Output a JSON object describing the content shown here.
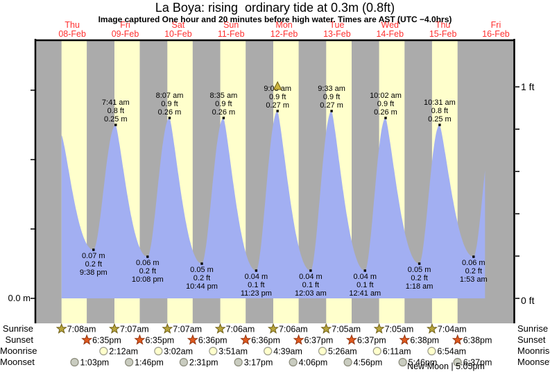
{
  "chart_data": {
    "type": "area",
    "title": "La Boya: rising  ordinary tide at 0.3m (0.8ft)",
    "subtitle": "Image captured One hour and 20 minutes before high water. Times are AST (UTC −4.0hrs)",
    "days": [
      {
        "weekday": "Thu",
        "date": "08-Feb"
      },
      {
        "weekday": "Fri",
        "date": "09-Feb"
      },
      {
        "weekday": "Sat",
        "date": "10-Feb"
      },
      {
        "weekday": "Sun",
        "date": "11-Feb"
      },
      {
        "weekday": "Mon",
        "date": "12-Feb"
      },
      {
        "weekday": "Tue",
        "date": "13-Feb"
      },
      {
        "weekday": "Wed",
        "date": "14-Feb"
      },
      {
        "weekday": "Thu",
        "date": "15-Feb"
      },
      {
        "weekday": "Fri",
        "date": "16-Feb"
      }
    ],
    "y_axis_left": {
      "label": "0.0 m",
      "tick_step_m": 0.1,
      "max_m": 0.3
    },
    "y_axis_right": {
      "label_bottom": "0 ft",
      "label_top": "1 ft",
      "tick_step_ft": 0.2,
      "max_ft": 1.0
    },
    "tide_events": [
      {
        "day": 0,
        "kind": "low",
        "time": "9:38 pm",
        "ft": 0.2,
        "m": 0.07
      },
      {
        "day": 1,
        "kind": "high",
        "time": "7:41 am",
        "ft": 0.8,
        "m": 0.25
      },
      {
        "day": 1,
        "kind": "low",
        "time": "10:08 pm",
        "ft": 0.2,
        "m": 0.06
      },
      {
        "day": 2,
        "kind": "high",
        "time": "8:07 am",
        "ft": 0.9,
        "m": 0.26
      },
      {
        "day": 2,
        "kind": "low",
        "time": "10:44 pm",
        "ft": 0.2,
        "m": 0.05
      },
      {
        "day": 3,
        "kind": "high",
        "time": "8:35 am",
        "ft": 0.9,
        "m": 0.26
      },
      {
        "day": 3,
        "kind": "low",
        "time": "11:23 pm",
        "ft": 0.1,
        "m": 0.04
      },
      {
        "day": 4,
        "kind": "high",
        "time": "9:03 am",
        "ft": 0.9,
        "m": 0.27,
        "marker": true
      },
      {
        "day": 5,
        "kind": "low",
        "time": "12:03 am",
        "ft": 0.1,
        "m": 0.04
      },
      {
        "day": 5,
        "kind": "high",
        "time": "9:33 am",
        "ft": 0.9,
        "m": 0.27
      },
      {
        "day": 6,
        "kind": "low",
        "time": "12:41 am",
        "ft": 0.1,
        "m": 0.04
      },
      {
        "day": 6,
        "kind": "high",
        "time": "10:02 am",
        "ft": 0.9,
        "m": 0.26
      },
      {
        "day": 7,
        "kind": "low",
        "time": "1:18 am",
        "ft": 0.2,
        "m": 0.05
      },
      {
        "day": 7,
        "kind": "high",
        "time": "10:31 am",
        "ft": 0.8,
        "m": 0.25
      },
      {
        "day": 8,
        "kind": "low",
        "time": "1:53 am",
        "ft": 0.2,
        "m": 0.06
      }
    ],
    "data_window_days": [
      0.297,
      8.295
    ],
    "offscreen_anchors": [
      {
        "t": 0.3,
        "m": 0.235
      },
      {
        "t": 8.46,
        "m": 0.25
      }
    ]
  },
  "astro": {
    "rows": [
      {
        "label": "Sunrise",
        "icon": "sunrise-star",
        "events": [
          {
            "day": 0,
            "time": "7:08am"
          },
          {
            "day": 1,
            "time": "7:07am"
          },
          {
            "day": 2,
            "time": "7:07am"
          },
          {
            "day": 3,
            "time": "7:06am"
          },
          {
            "day": 4,
            "time": "7:06am"
          },
          {
            "day": 5,
            "time": "7:05am"
          },
          {
            "day": 6,
            "time": "7:05am"
          },
          {
            "day": 7,
            "time": "7:04am"
          }
        ]
      },
      {
        "label": "Sunset",
        "icon": "sunset-star",
        "events": [
          {
            "day": 0,
            "time": "6:35pm"
          },
          {
            "day": 1,
            "time": "6:35pm"
          },
          {
            "day": 2,
            "time": "6:36pm"
          },
          {
            "day": 3,
            "time": "6:36pm"
          },
          {
            "day": 4,
            "time": "6:37pm"
          },
          {
            "day": 5,
            "time": "6:37pm"
          },
          {
            "day": 6,
            "time": "6:38pm"
          },
          {
            "day": 7,
            "time": "6:38pm"
          }
        ]
      },
      {
        "label": "Moonrise",
        "icon": "moonrise-circle",
        "events": [
          {
            "day": 1,
            "time": "2:12am"
          },
          {
            "day": 2,
            "time": "3:02am"
          },
          {
            "day": 3,
            "time": "3:51am"
          },
          {
            "day": 4,
            "time": "4:39am"
          },
          {
            "day": 5,
            "time": "5:26am"
          },
          {
            "day": 6,
            "time": "6:11am"
          },
          {
            "day": 7,
            "time": "6:54am"
          }
        ]
      },
      {
        "label": "Moonset",
        "icon": "moonset-circle",
        "events": [
          {
            "day": 0,
            "time": "1:03pm"
          },
          {
            "day": 1,
            "time": "1:46pm"
          },
          {
            "day": 2,
            "time": "2:31pm"
          },
          {
            "day": 3,
            "time": "3:17pm"
          },
          {
            "day": 4,
            "time": "4:06pm"
          },
          {
            "day": 5,
            "time": "4:56pm"
          },
          {
            "day": 6,
            "time": "5:46pm"
          },
          {
            "day": 7,
            "time": "6:37pm"
          }
        ]
      }
    ],
    "moon_phase": "New Moon | 5:05pm"
  },
  "colors": {
    "night_band": "#ababab",
    "day_band": "#ffffcc",
    "tide_fill": "#a2aff2",
    "day_label": "#ff3030",
    "axis": "#000000",
    "sunrise_star": "#b7a43c",
    "sunrise_star_edge": "#6f5f16",
    "sunset_star": "#e05a1e",
    "sunset_star_edge": "#93330e",
    "moonrise_circle": "#ffffcc",
    "moonrise_circle_edge": "#99998a",
    "moonset_circle": "#c9ccc0",
    "moonset_circle_edge": "#8a8a7a",
    "capture_marker": "#cdb53e",
    "capture_marker_edge": "#6e5e12"
  }
}
